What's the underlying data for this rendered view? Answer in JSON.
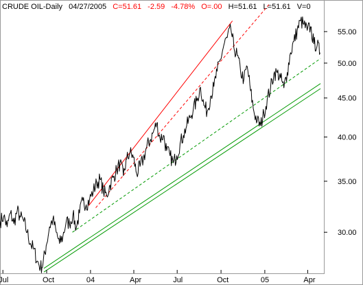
{
  "header": {
    "symbol": "CRUDE OIL-Daily",
    "date": "04/27/2005",
    "close": "C=51.61",
    "change": "-2.59",
    "change_pct": "-4.78%",
    "open": "O=.00",
    "high": "H=51.61",
    "low": "L=51.61",
    "volume": "V=0"
  },
  "colors": {
    "price": "#000000",
    "red_channel": "#ff0000",
    "green_channel": "#009900",
    "header_red": "#ff0000",
    "frame": "#999999"
  },
  "chart_data": {
    "type": "line",
    "title": "CRUDE OIL-Daily",
    "y_scale": "log",
    "ylim": [
      26.5,
      60.5
    ],
    "y_ticks": [
      30,
      35,
      40,
      45,
      50,
      55
    ],
    "y_tick_labels": [
      "30.00",
      "35.00",
      "40.00",
      "45.00",
      "50.00",
      "55.00"
    ],
    "x_range": [
      "2003-06-25",
      "2005-05-05"
    ],
    "x_ticks": [
      "2003-07-01",
      "2003-10-01",
      "2004-01-01",
      "2004-04-01",
      "2004-07-01",
      "2004-10-01",
      "2005-01-01",
      "2005-04-01"
    ],
    "x_tick_labels": [
      "Jul",
      "Oct",
      "04",
      "Apr",
      "Jul",
      "Oct",
      "05",
      "Apr"
    ],
    "grid": false,
    "series": [
      {
        "style": "price",
        "x": [
          "2003-06-25",
          "2003-07-03",
          "2003-07-10",
          "2003-07-17",
          "2003-07-24",
          "2003-07-31",
          "2003-08-07",
          "2003-08-14",
          "2003-08-21",
          "2003-08-28",
          "2003-09-04",
          "2003-09-11",
          "2003-09-18",
          "2003-09-23",
          "2003-09-30",
          "2003-10-07",
          "2003-10-14",
          "2003-10-21",
          "2003-10-28",
          "2003-11-04",
          "2003-11-11",
          "2003-11-18",
          "2003-11-25",
          "2003-12-02",
          "2003-12-09",
          "2003-12-16",
          "2003-12-23",
          "2003-12-30",
          "2004-01-07",
          "2004-01-14",
          "2004-01-21",
          "2004-01-28",
          "2004-02-04",
          "2004-02-11",
          "2004-02-18",
          "2004-02-25",
          "2004-03-03",
          "2004-03-10",
          "2004-03-17",
          "2004-03-24",
          "2004-03-31",
          "2004-04-07",
          "2004-04-14",
          "2004-04-21",
          "2004-04-28",
          "2004-05-05",
          "2004-05-12",
          "2004-05-19",
          "2004-05-26",
          "2004-06-02",
          "2004-06-09",
          "2004-06-16",
          "2004-06-23",
          "2004-06-30",
          "2004-07-07",
          "2004-07-14",
          "2004-07-21",
          "2004-07-28",
          "2004-08-04",
          "2004-08-11",
          "2004-08-19",
          "2004-08-26",
          "2004-09-02",
          "2004-09-09",
          "2004-09-16",
          "2004-09-23",
          "2004-09-30",
          "2004-10-07",
          "2004-10-14",
          "2004-10-22",
          "2004-10-28",
          "2004-11-04",
          "2004-11-11",
          "2004-11-18",
          "2004-11-25",
          "2004-12-02",
          "2004-12-09",
          "2004-12-16",
          "2004-12-23",
          "2004-12-30",
          "2005-01-06",
          "2005-01-13",
          "2005-01-20",
          "2005-01-27",
          "2005-02-03",
          "2005-02-10",
          "2005-02-17",
          "2005-02-24",
          "2005-03-03",
          "2005-03-10",
          "2005-03-17",
          "2005-03-24",
          "2005-03-31",
          "2005-04-07",
          "2005-04-14",
          "2005-04-21",
          "2005-04-27"
        ],
        "values": [
          31.0,
          31.5,
          30.5,
          31.8,
          30.8,
          32.0,
          31.4,
          31.0,
          30.0,
          29.0,
          28.5,
          27.5,
          27.0,
          27.2,
          28.8,
          30.5,
          31.2,
          30.0,
          29.0,
          29.6,
          31.0,
          30.8,
          31.6,
          30.4,
          31.8,
          33.0,
          32.6,
          33.1,
          34.0,
          34.8,
          35.2,
          34.0,
          33.5,
          34.6,
          35.4,
          36.2,
          37.0,
          35.6,
          37.4,
          38.2,
          37.6,
          35.8,
          36.6,
          37.4,
          38.8,
          39.6,
          40.6,
          41.7,
          39.8,
          40.2,
          38.4,
          37.8,
          37.0,
          37.8,
          39.2,
          40.2,
          41.4,
          42.4,
          43.6,
          44.6,
          46.5,
          44.0,
          43.2,
          45.2,
          46.6,
          48.8,
          50.6,
          52.8,
          54.0,
          55.3,
          52.4,
          51.2,
          48.8,
          47.6,
          49.5,
          46.0,
          43.2,
          42.0,
          41.4,
          43.0,
          44.8,
          46.4,
          48.4,
          48.6,
          47.8,
          46.4,
          48.6,
          51.6,
          53.4,
          55.2,
          56.8,
          56.2,
          55.2,
          55.8,
          53.0,
          52.8,
          51.61
        ]
      },
      {
        "style": "red-solid",
        "x": [
          "2003-12-28",
          "2004-10-25"
        ],
        "values": [
          32.5,
          56.8
        ]
      },
      {
        "style": "red-dashed",
        "x": [
          "2004-01-12",
          "2005-01-10"
        ],
        "values": [
          32.3,
          59.7
        ]
      },
      {
        "style": "green-dashed",
        "x": [
          "2003-11-24",
          "2005-04-28"
        ],
        "values": [
          30.0,
          50.7
        ]
      },
      {
        "style": "green-solid",
        "x": [
          "2003-09-25",
          "2005-04-28"
        ],
        "values": [
          26.9,
          47.0
        ]
      },
      {
        "style": "green-solid",
        "x": [
          "2003-09-25",
          "2005-04-28"
        ],
        "values": [
          26.6,
          46.3
        ]
      }
    ]
  }
}
